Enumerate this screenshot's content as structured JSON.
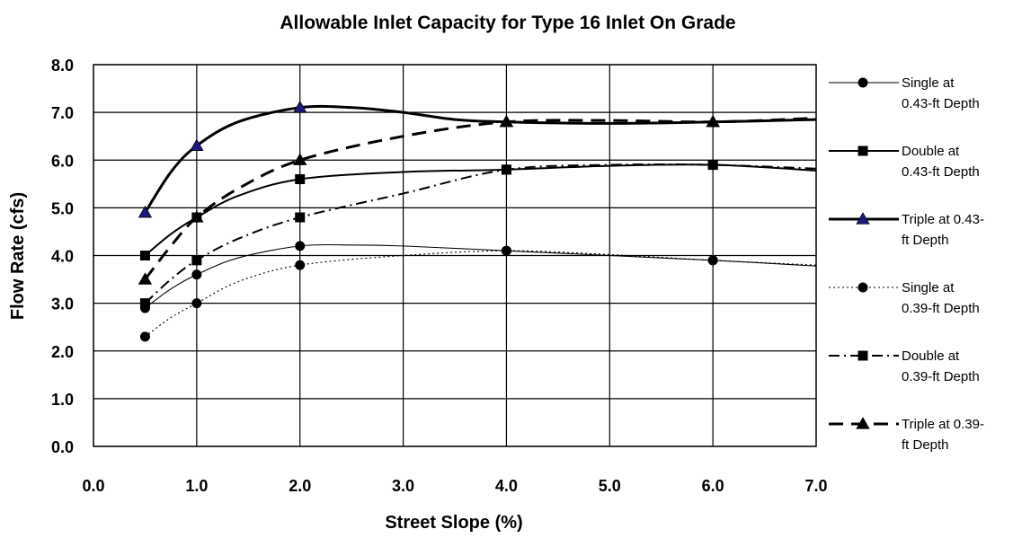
{
  "chart_data": {
    "type": "line",
    "title": "Allowable Inlet Capacity for Type 16 Inlet On Grade",
    "xlabel": "Street Slope (%)",
    "ylabel": "Flow Rate (cfs)",
    "xlim": [
      0,
      7
    ],
    "ylim": [
      0,
      8
    ],
    "x_ticks": [
      "0.0",
      "1.0",
      "2.0",
      "3.0",
      "4.0",
      "5.0",
      "6.0",
      "7.0"
    ],
    "y_ticks": [
      "0.0",
      "1.0",
      "2.0",
      "3.0",
      "4.0",
      "5.0",
      "6.0",
      "7.0",
      "8.0"
    ],
    "grid": true,
    "legend_position": "right",
    "series": [
      {
        "name": "Single at 0.43-ft Depth",
        "legend_lines": [
          "Single at",
          "0.43-ft Depth"
        ],
        "marker": "circle",
        "line": "solid",
        "weight": "thin",
        "marker_color": "#000000",
        "x": [
          0.5,
          1.0,
          2.0,
          4.0,
          6.0
        ],
        "y": [
          2.9,
          3.6,
          4.2,
          4.1,
          3.9
        ],
        "curve": [
          [
            0.5,
            2.9
          ],
          [
            0.75,
            3.3
          ],
          [
            1.0,
            3.6
          ],
          [
            1.4,
            3.95
          ],
          [
            2.0,
            4.2
          ],
          [
            2.5,
            4.22
          ],
          [
            3.0,
            4.2
          ],
          [
            4.0,
            4.1
          ],
          [
            5.0,
            4.0
          ],
          [
            6.0,
            3.9
          ],
          [
            7.0,
            3.78
          ]
        ]
      },
      {
        "name": "Double at 0.43-ft Depth",
        "legend_lines": [
          "Double at",
          "0.43-ft Depth"
        ],
        "marker": "square",
        "line": "solid",
        "weight": "medium",
        "marker_color": "#000000",
        "x": [
          0.5,
          1.0,
          2.0,
          4.0,
          6.0
        ],
        "y": [
          4.0,
          4.8,
          5.6,
          5.8,
          5.9
        ],
        "curve": [
          [
            0.5,
            4.0
          ],
          [
            0.75,
            4.45
          ],
          [
            1.0,
            4.8
          ],
          [
            1.4,
            5.25
          ],
          [
            2.0,
            5.6
          ],
          [
            3.0,
            5.75
          ],
          [
            4.0,
            5.8
          ],
          [
            5.0,
            5.88
          ],
          [
            6.0,
            5.9
          ],
          [
            7.0,
            5.78
          ]
        ]
      },
      {
        "name": "Triple at 0.43-ft Depth",
        "legend_lines": [
          "Triple at 0.43-",
          "ft Depth"
        ],
        "marker": "triangle",
        "line": "solid",
        "weight": "thick",
        "marker_color": "#1a1a80",
        "x": [
          0.5,
          1.0,
          2.0,
          4.0,
          6.0
        ],
        "y": [
          4.9,
          6.3,
          7.1,
          6.8,
          6.8
        ],
        "curve": [
          [
            0.5,
            4.9
          ],
          [
            0.75,
            5.75
          ],
          [
            1.0,
            6.3
          ],
          [
            1.4,
            6.8
          ],
          [
            2.0,
            7.1
          ],
          [
            2.5,
            7.1
          ],
          [
            3.0,
            7.0
          ],
          [
            3.5,
            6.85
          ],
          [
            4.0,
            6.8
          ],
          [
            5.0,
            6.77
          ],
          [
            6.0,
            6.8
          ],
          [
            7.0,
            6.85
          ]
        ]
      },
      {
        "name": "Single at 0.39-ft Depth",
        "legend_lines": [
          "Single at",
          "0.39-ft Depth"
        ],
        "marker": "circle",
        "line": "dotted",
        "weight": "thin",
        "marker_color": "#000000",
        "x": [
          0.5,
          1.0,
          2.0,
          4.0,
          6.0
        ],
        "y": [
          2.3,
          3.0,
          3.8,
          4.1,
          3.9
        ],
        "curve": [
          [
            0.5,
            2.3
          ],
          [
            0.75,
            2.7
          ],
          [
            1.0,
            3.0
          ],
          [
            1.4,
            3.45
          ],
          [
            2.0,
            3.8
          ],
          [
            3.0,
            4.0
          ],
          [
            4.0,
            4.1
          ],
          [
            5.0,
            4.02
          ],
          [
            6.0,
            3.9
          ],
          [
            7.0,
            3.8
          ]
        ]
      },
      {
        "name": "Double at 0.39-ft Depth",
        "legend_lines": [
          "Double at",
          "0.39-ft Depth"
        ],
        "marker": "square",
        "line": "dashdot",
        "weight": "medium",
        "marker_color": "#000000",
        "x": [
          0.5,
          1.0,
          2.0,
          4.0,
          6.0
        ],
        "y": [
          3.0,
          3.9,
          4.8,
          5.8,
          5.9
        ],
        "curve": [
          [
            0.5,
            3.0
          ],
          [
            0.75,
            3.5
          ],
          [
            1.0,
            3.9
          ],
          [
            1.4,
            4.35
          ],
          [
            2.0,
            4.8
          ],
          [
            3.0,
            5.3
          ],
          [
            4.0,
            5.8
          ],
          [
            5.0,
            5.9
          ],
          [
            6.0,
            5.9
          ],
          [
            7.0,
            5.82
          ]
        ]
      },
      {
        "name": "Triple at 0.39-ft Depth",
        "legend_lines": [
          "Triple at 0.39-",
          "ft Depth"
        ],
        "marker": "triangle",
        "line": "dashed",
        "weight": "thick",
        "marker_color": "#000000",
        "x": [
          0.5,
          1.0,
          2.0,
          4.0,
          6.0
        ],
        "y": [
          3.5,
          4.8,
          6.0,
          6.8,
          6.8
        ],
        "curve": [
          [
            0.5,
            3.5
          ],
          [
            0.75,
            4.2
          ],
          [
            1.0,
            4.8
          ],
          [
            1.4,
            5.4
          ],
          [
            2.0,
            6.0
          ],
          [
            3.0,
            6.5
          ],
          [
            4.0,
            6.8
          ],
          [
            5.0,
            6.83
          ],
          [
            6.0,
            6.8
          ],
          [
            7.0,
            6.88
          ]
        ]
      }
    ]
  }
}
